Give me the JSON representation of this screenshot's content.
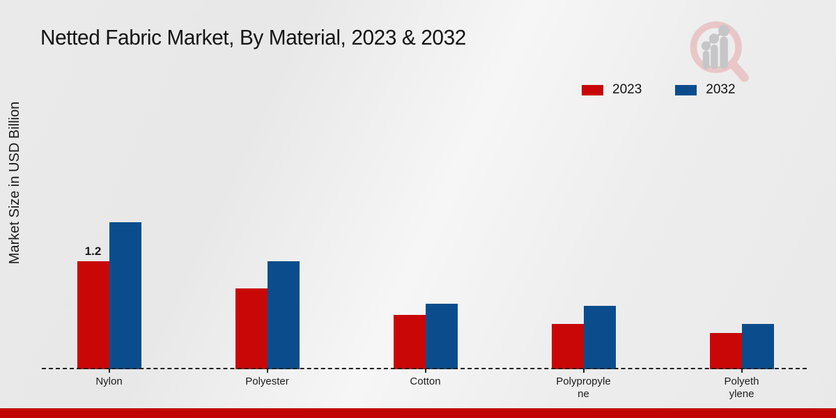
{
  "title": "Netted Fabric Market, By Material, 2023 & 2032",
  "y_axis_label": "Market Size in USD Billion",
  "legend": {
    "items": [
      {
        "label": "2023",
        "color": "#c90707"
      },
      {
        "label": "2032",
        "color": "#0b4d8c"
      }
    ]
  },
  "chart_data": {
    "type": "bar",
    "title": "Netted Fabric Market, By Material, 2023 & 2032",
    "categories": [
      "Nylon",
      "Polyester",
      "Cotton",
      "Polypropylene",
      "Polyethylene"
    ],
    "tick_label_lines": [
      [
        "Nylon"
      ],
      [
        "Polyester"
      ],
      [
        "Cotton"
      ],
      [
        "Polypropyle",
        "ne"
      ],
      [
        "Polyeth",
        "ylene"
      ]
    ],
    "series": [
      {
        "name": "2023",
        "color": "#c90707",
        "values": [
          1.2,
          0.9,
          0.6,
          0.5,
          0.4
        ]
      },
      {
        "name": "2032",
        "color": "#0b4d8c",
        "values": [
          1.63,
          1.2,
          0.73,
          0.7,
          0.5
        ]
      }
    ],
    "data_labels": [
      {
        "category": "Nylon",
        "series": "2023",
        "text": "1.2"
      }
    ],
    "xlabel": "",
    "ylabel": "Market Size in USD Billion",
    "ylim": [
      0,
      1.8
    ],
    "grid": false,
    "legend_position": "top-right",
    "axis_style": "dashed-baseline-only"
  },
  "footer": {
    "bar_color": "#c00404"
  },
  "logo": {
    "name": "growth-chart-magnifier-logo",
    "ring_color": "#e9c6c7",
    "bar_color": "#c6c6c8"
  }
}
